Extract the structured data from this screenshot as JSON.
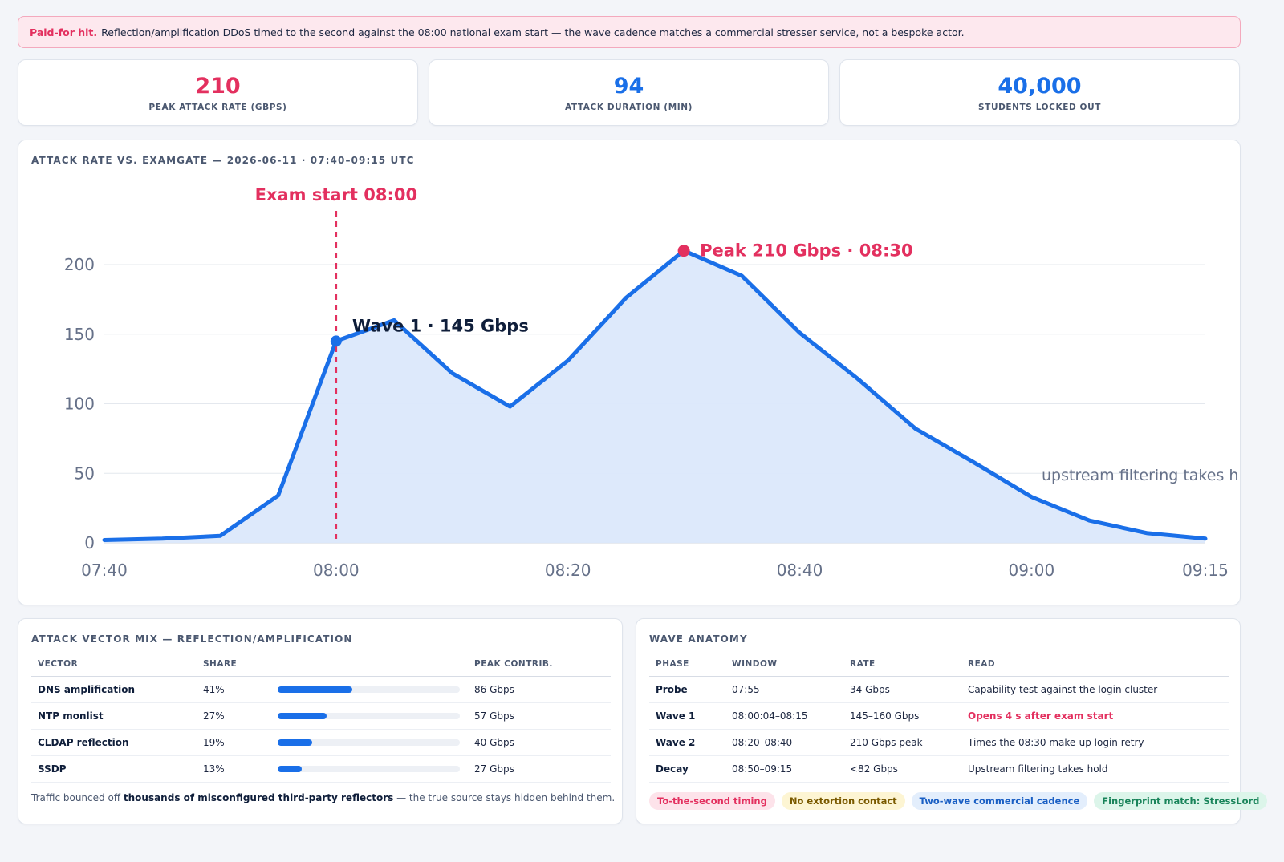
{
  "alert": {
    "lead": "Paid-for hit.",
    "text": "Reflection/amplification DDoS timed to the second against the 08:00 national exam start — the wave cadence matches a commercial stresser service, not a bespoke actor."
  },
  "kpis": [
    {
      "value": "210",
      "label": "PEAK ATTACK RATE (GBPS)",
      "color": "#e3305f"
    },
    {
      "value": "94",
      "label": "ATTACK DURATION (MIN)",
      "color": "#1a6fe8"
    },
    {
      "value": "40,000",
      "label": "STUDENTS LOCKED OUT",
      "color": "#1a6fe8"
    }
  ],
  "chart_card": {
    "title": "ATTACK RATE VS. EXAMGATE — 2026-06-11 · 07:40–09:15 UTC"
  },
  "chart_data": {
    "type": "area",
    "x": [
      "07:40",
      "07:45",
      "07:50",
      "07:55",
      "08:00",
      "08:05",
      "08:10",
      "08:15",
      "08:20",
      "08:25",
      "08:30",
      "08:35",
      "08:40",
      "08:45",
      "08:50",
      "08:55",
      "09:00",
      "09:05",
      "09:10",
      "09:15"
    ],
    "values": [
      2,
      3,
      5,
      34,
      145,
      160,
      122,
      98,
      131,
      176,
      210,
      192,
      151,
      118,
      82,
      58,
      33,
      16,
      7,
      3
    ],
    "ylim": [
      0,
      200
    ],
    "yticks": [
      "0",
      "50",
      "100",
      "150",
      "200"
    ],
    "xticks": [
      "07:40",
      "08:00",
      "08:20",
      "08:40",
      "09:00",
      "09:15"
    ],
    "grid": true,
    "colors": {
      "line": "#1a6fe8",
      "fill": "#dbe8fb",
      "accent": "#e3305f"
    },
    "annotations": {
      "exam_start": "Exam start 08:00",
      "wave1": "Wave 1 · 145 Gbps",
      "peak": "Peak 210 Gbps · 08:30",
      "filter": "upstream filtering takes h"
    }
  },
  "vectors": {
    "title": "ATTACK VECTOR MIX — REFLECTION/AMPLIFICATION",
    "headers": [
      "VECTOR",
      "SHARE",
      "PEAK CONTRIB."
    ],
    "rows": [
      {
        "name": "DNS amplification",
        "share": "41%",
        "fraction": 0.41,
        "contrib": "86 Gbps"
      },
      {
        "name": "NTP monlist",
        "share": "27%",
        "fraction": 0.27,
        "contrib": "57 Gbps"
      },
      {
        "name": "CLDAP reflection",
        "share": "19%",
        "fraction": 0.19,
        "contrib": "40 Gbps"
      },
      {
        "name": "SSDP",
        "share": "13%",
        "fraction": 0.13,
        "contrib": "27 Gbps"
      }
    ],
    "note_pre": "Traffic bounced off ",
    "note_bold": "thousands of misconfigured third-party reflectors",
    "note_post": " — the true source stays hidden behind them."
  },
  "waves": {
    "title": "WAVE ANATOMY",
    "headers": [
      "PHASE",
      "WINDOW",
      "RATE",
      "READ"
    ],
    "rows": [
      {
        "phase": "Probe",
        "window": "07:55",
        "rate": "34 Gbps",
        "read": "Capability test against the login cluster"
      },
      {
        "phase": "Wave 1",
        "window": "08:00:04–08:15",
        "rate": "145–160 Gbps",
        "read": "Opens 4 s after exam start"
      },
      {
        "phase": "Wave 2",
        "window": "08:20–08:40",
        "rate": "210 Gbps peak",
        "read": "Times the 08:30 make-up login retry"
      },
      {
        "phase": "Decay",
        "window": "08:50–09:15",
        "rate": "<82 Gbps",
        "read": "Upstream filtering takes hold"
      }
    ],
    "tags": [
      "To-the-second timing",
      "No extortion contact",
      "Two-wave commercial cadence",
      "Fingerprint match: StressLord"
    ]
  }
}
